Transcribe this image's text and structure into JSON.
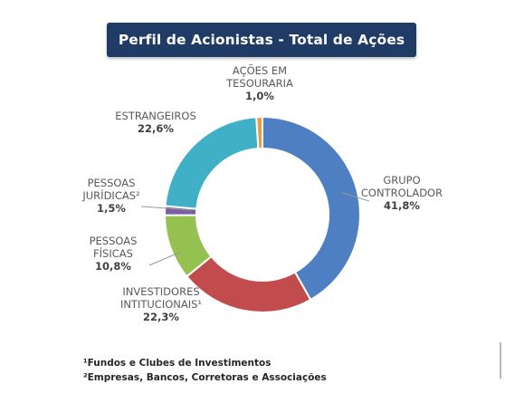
{
  "title": "Perfil de Acionistas - Total de Ações",
  "chart_data": {
    "type": "pie",
    "donut": true,
    "slices": [
      {
        "name_lines": [
          "GRUPO",
          "CONTROLADOR"
        ],
        "value": 41.8,
        "label": "41,8%",
        "color": "#4e7fc2"
      },
      {
        "name_lines": [
          "INVESTIDORES",
          "INTITUCIONAIS¹"
        ],
        "value": 22.3,
        "label": "22,3%",
        "color": "#c24b4d"
      },
      {
        "name_lines": [
          "PESSOAS",
          "FÍSICAS"
        ],
        "value": 10.8,
        "label": "10,8%",
        "color": "#94c14f"
      },
      {
        "name_lines": [
          "PESSOAS",
          "JURÍDICAS²"
        ],
        "value": 1.5,
        "label": "1,5%",
        "color": "#7a5fa3"
      },
      {
        "name_lines": [
          "ESTRANGEIROS"
        ],
        "value": 22.6,
        "label": "22,6%",
        "color": "#3fb0c6"
      },
      {
        "name_lines": [
          "AÇÕES EM",
          "TESOURARIA"
        ],
        "value": 1.0,
        "label": "1,0%",
        "color": "#ef9b3a"
      }
    ]
  },
  "footnotes": [
    "¹Fundos e Clubes de Investimentos",
    "²Empresas, Bancos, Corretoras e Associações"
  ]
}
